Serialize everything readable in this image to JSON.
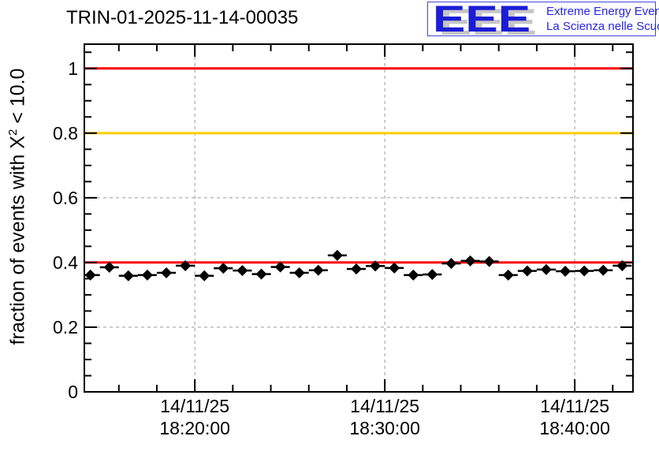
{
  "title": "TRIN-01-2025-11-14-00035",
  "logo": {
    "acronym": "EEE",
    "tagline_line1": "Extreme Energy Events",
    "tagline_line2": "La Scienza nelle Scuole",
    "text_color": "#2525e8",
    "shadow_color": "#c6c6c6",
    "border_color": "#4646dd"
  },
  "chart_data": {
    "type": "scatter",
    "title": "TRIN-01-2025-11-14-00035",
    "ylabel": "fraction of events with X^2 < 10.0",
    "ylabel_parts": {
      "prefix": "fraction of events with X",
      "sup": "2",
      "suffix": " < 10.0"
    },
    "xlabel": "",
    "ylim": [
      0,
      1.075
    ],
    "y_ticks": [
      0,
      0.2,
      0.4,
      0.6,
      0.8,
      1
    ],
    "y_minor_step": 0.05,
    "x_range": [
      "18:14:11",
      "18:43:04"
    ],
    "x_ticks": [
      {
        "time": "18:20:00",
        "label_line1": "14/11/25",
        "label_line2": "18:20:00"
      },
      {
        "time": "18:30:00",
        "label_line1": "14/11/25",
        "label_line2": "18:30:00"
      },
      {
        "time": "18:40:00",
        "label_line1": "14/11/25",
        "label_line2": "18:40:00"
      }
    ],
    "x_minor_step_min": 2,
    "grid": true,
    "grid_color": "#9a9a9a",
    "frame_color": "#000000",
    "reference_lines": [
      {
        "y": 1.0,
        "color": "#ff0000"
      },
      {
        "y": 0.8,
        "color": "#ffcc00"
      },
      {
        "y": 0.4,
        "color": "#ff0000"
      }
    ],
    "series": [
      {
        "name": "fraction of events with chi2 < 10",
        "marker": "diamond",
        "color": "#000000",
        "bin_width_min": 1,
        "points": [
          [
            "18:14:30",
            0.361
          ],
          [
            "18:15:30",
            0.385
          ],
          [
            "18:16:30",
            0.359
          ],
          [
            "18:17:30",
            0.361
          ],
          [
            "18:18:30",
            0.368
          ],
          [
            "18:19:30",
            0.39
          ],
          [
            "18:20:30",
            0.359
          ],
          [
            "18:21:30",
            0.382
          ],
          [
            "18:22:30",
            0.375
          ],
          [
            "18:23:30",
            0.364
          ],
          [
            "18:24:30",
            0.386
          ],
          [
            "18:25:30",
            0.368
          ],
          [
            "18:26:30",
            0.376
          ],
          [
            "18:27:30",
            0.422
          ],
          [
            "18:28:30",
            0.38
          ],
          [
            "18:29:30",
            0.389
          ],
          [
            "18:30:30",
            0.383
          ],
          [
            "18:31:30",
            0.361
          ],
          [
            "18:32:30",
            0.363
          ],
          [
            "18:33:30",
            0.397
          ],
          [
            "18:34:30",
            0.405
          ],
          [
            "18:35:30",
            0.403
          ],
          [
            "18:36:30",
            0.361
          ],
          [
            "18:37:30",
            0.374
          ],
          [
            "18:38:30",
            0.378
          ],
          [
            "18:39:30",
            0.373
          ],
          [
            "18:40:30",
            0.374
          ],
          [
            "18:41:30",
            0.376
          ],
          [
            "18:42:30",
            0.39
          ]
        ]
      }
    ]
  }
}
